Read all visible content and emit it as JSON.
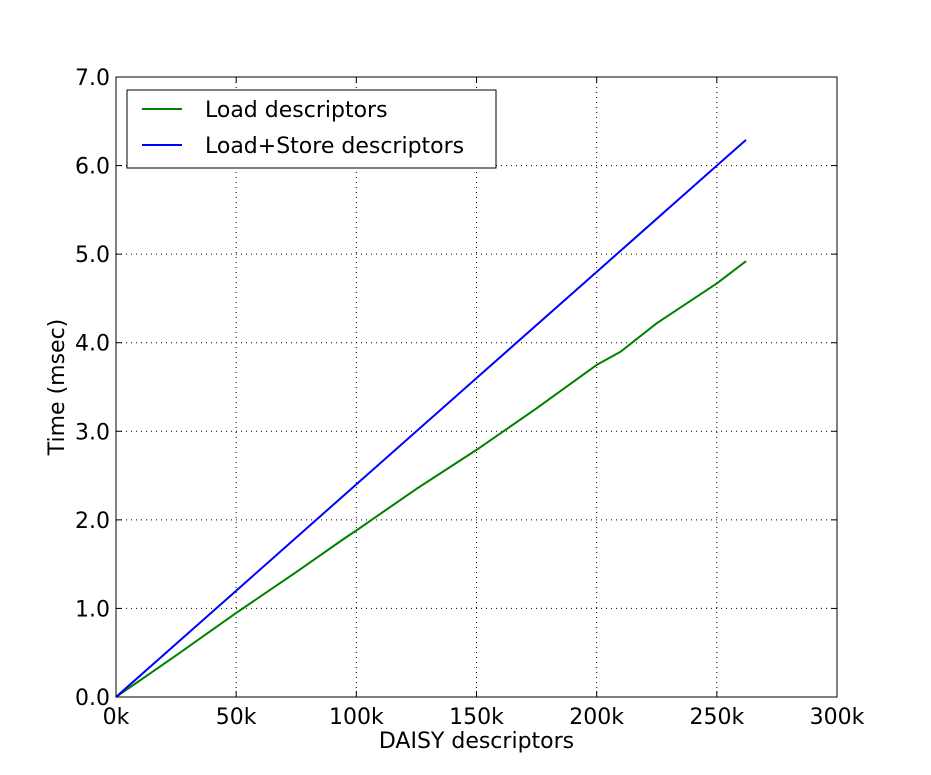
{
  "chart_data": {
    "type": "line",
    "title": "",
    "xlabel": "DAISY descriptors",
    "ylabel": "Time (msec)",
    "xlim": [
      0,
      300000
    ],
    "ylim": [
      0,
      7.0
    ],
    "x_ticks": [
      0,
      50000,
      100000,
      150000,
      200000,
      250000,
      300000
    ],
    "x_tick_labels": [
      "0k",
      "50k",
      "100k",
      "150k",
      "200k",
      "250k",
      "300k"
    ],
    "y_ticks": [
      0,
      1,
      2,
      3,
      4,
      5,
      6,
      7
    ],
    "y_tick_labels": [
      "0.0",
      "1.0",
      "2.0",
      "3.0",
      "4.0",
      "5.0",
      "6.0",
      "7.0"
    ],
    "grid": true,
    "legend_position": "top-left",
    "series": [
      {
        "name": "Load descriptors",
        "color": "#008000",
        "x": [
          0,
          25000,
          50000,
          75000,
          95000,
          100000,
          125000,
          150000,
          175000,
          200000,
          210000,
          225000,
          250000,
          262144
        ],
        "y": [
          0,
          0.47,
          0.95,
          1.41,
          1.79,
          1.88,
          2.35,
          2.79,
          3.26,
          3.75,
          3.9,
          4.22,
          4.67,
          4.92
        ]
      },
      {
        "name": "Load+Store descriptors",
        "color": "#0000ff",
        "x": [
          0,
          50000,
          100000,
          150000,
          200000,
          250000,
          262144
        ],
        "y": [
          0,
          1.2,
          2.4,
          3.6,
          4.8,
          6.0,
          6.29
        ]
      }
    ]
  }
}
